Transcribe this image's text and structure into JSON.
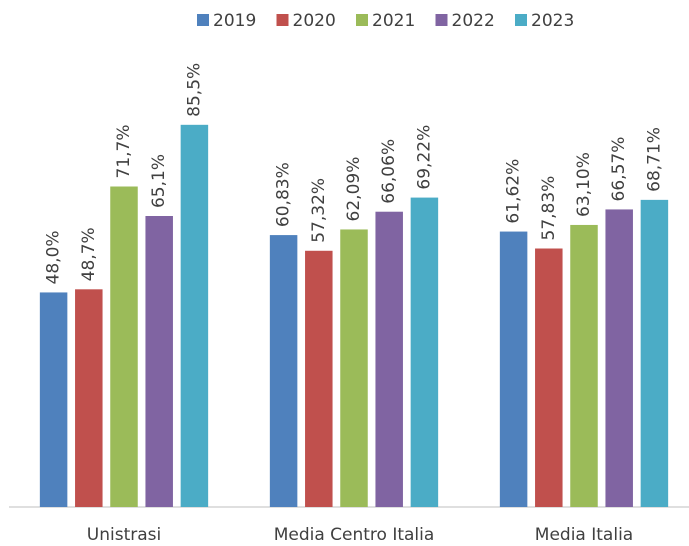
{
  "chart_data": {
    "type": "bar",
    "categories": [
      "Unistrasi",
      "Media Centro Italia",
      "Media Italia"
    ],
    "series": [
      {
        "name": "2019",
        "color": "#4f81bd",
        "values": [
          48.0,
          60.83,
          61.62
        ],
        "value_labels": [
          "48,0%",
          "60,83%",
          "61,62%"
        ]
      },
      {
        "name": "2020",
        "color": "#c0504d",
        "values": [
          48.7,
          57.32,
          57.83
        ],
        "value_labels": [
          "48,7%",
          "57,32%",
          "57,83%"
        ]
      },
      {
        "name": "2021",
        "color": "#9bbb59",
        "values": [
          71.7,
          62.09,
          63.1
        ],
        "value_labels": [
          "71,7%",
          "62,09%",
          "63,10%"
        ]
      },
      {
        "name": "2022",
        "color": "#8064a2",
        "values": [
          65.1,
          66.06,
          66.57
        ],
        "value_labels": [
          "65,1%",
          "66,06%",
          "66,57%"
        ]
      },
      {
        "name": "2023",
        "color": "#4bacc6",
        "values": [
          85.5,
          69.22,
          68.71
        ],
        "value_labels": [
          "85,5%",
          "69,22%",
          "68,71%"
        ]
      }
    ],
    "ylim": [
      0,
      100
    ],
    "legend": "top"
  }
}
